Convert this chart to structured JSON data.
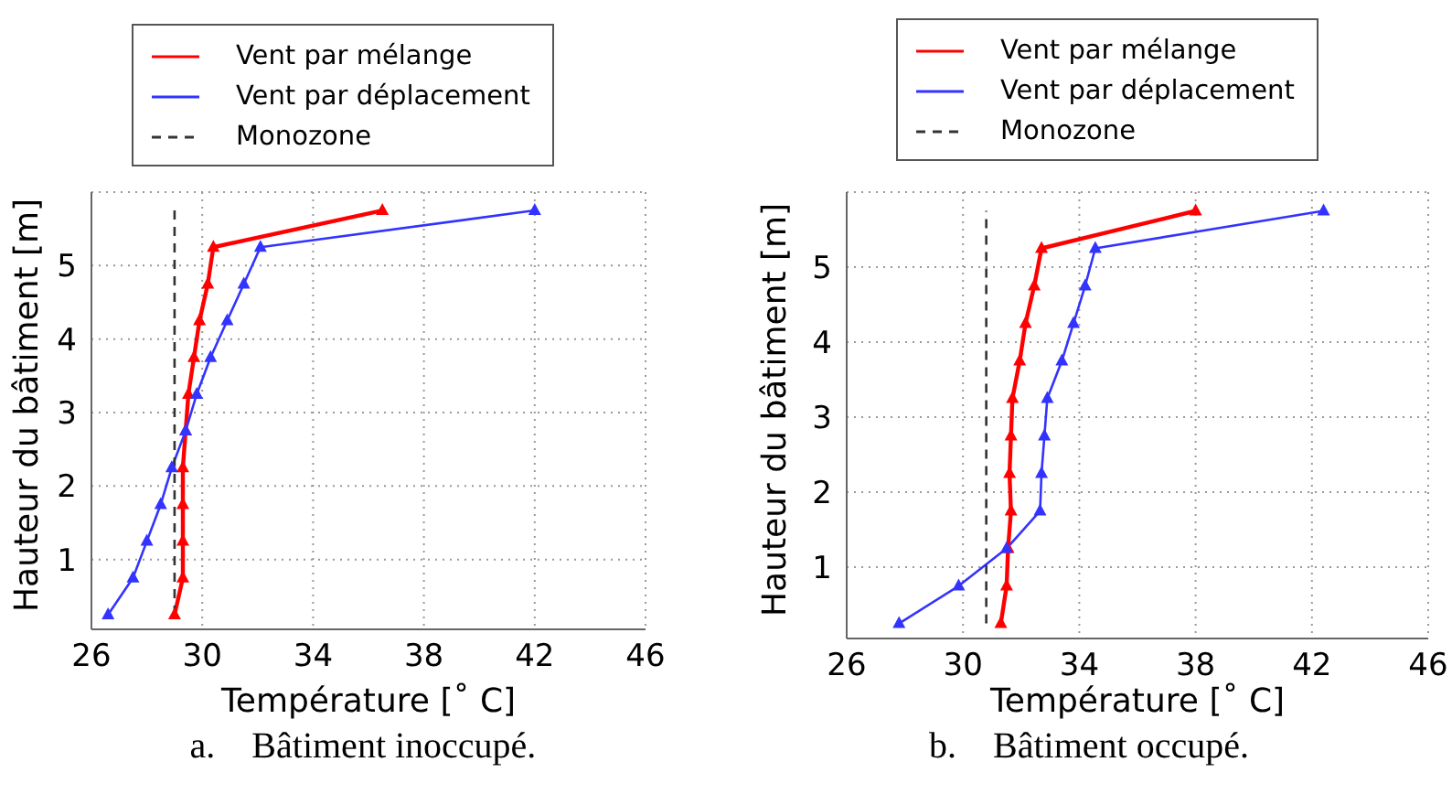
{
  "chart_data": [
    {
      "type": "line",
      "xlabel": "Température [˚ C]",
      "ylabel": "Hauteur du bâtiment [m]",
      "xlim": [
        26,
        46
      ],
      "xticks": [
        26,
        30,
        34,
        38,
        42,
        46
      ],
      "ylim": [
        0.05,
        6.0
      ],
      "yticks": [
        1,
        2,
        3,
        4,
        5
      ],
      "grid": true,
      "legend": "top",
      "annotations": [
        "a.    Bâtiment inoccupé."
      ],
      "series": [
        {
          "name": "Vent par mélange",
          "color": "#ff0000",
          "marker": "triangle",
          "line_style": "solid",
          "x": [
            29.0,
            29.3,
            29.3,
            29.3,
            29.3,
            29.4,
            29.5,
            29.7,
            29.9,
            30.2,
            30.4,
            36.5
          ],
          "values": [
            0.25,
            0.75,
            1.25,
            1.75,
            2.25,
            2.75,
            3.25,
            3.75,
            4.25,
            4.75,
            5.25,
            5.75
          ]
        },
        {
          "name": "Vent par déplacement",
          "color": "#3333ff",
          "marker": "triangle",
          "line_style": "solid",
          "x": [
            26.6,
            27.5,
            28.0,
            28.5,
            28.9,
            29.4,
            29.8,
            30.3,
            30.9,
            31.5,
            32.1,
            42.0
          ],
          "values": [
            0.25,
            0.75,
            1.25,
            1.75,
            2.25,
            2.75,
            3.25,
            3.75,
            4.25,
            4.75,
            5.25,
            5.75
          ]
        },
        {
          "name": "Monozone",
          "color": "#333333",
          "marker": "none",
          "line_style": "dashed",
          "x": [
            29.0,
            29.0
          ],
          "values": [
            0.25,
            5.75
          ]
        }
      ]
    },
    {
      "type": "line",
      "xlabel": "Température [˚ C]",
      "ylabel": "Hauteur du bâtiment [m]",
      "xlim": [
        26,
        46
      ],
      "xticks": [
        26,
        30,
        34,
        38,
        42,
        46
      ],
      "ylim": [
        0.05,
        6.0
      ],
      "yticks": [
        1,
        2,
        3,
        4,
        5
      ],
      "grid": true,
      "legend": "top",
      "annotations": [
        "b.    Bâtiment occupé."
      ],
      "series": [
        {
          "name": "Vent par mélange",
          "color": "#ff0000",
          "marker": "triangle",
          "line_style": "solid",
          "x": [
            31.3,
            31.5,
            31.55,
            31.65,
            31.6,
            31.65,
            31.7,
            31.95,
            32.15,
            32.45,
            32.7,
            38.0
          ],
          "values": [
            0.25,
            0.75,
            1.25,
            1.75,
            2.25,
            2.75,
            3.25,
            3.75,
            4.25,
            4.75,
            5.25,
            5.75
          ]
        },
        {
          "name": "Vent par déplacement",
          "color": "#3333ff",
          "marker": "triangle",
          "line_style": "solid",
          "x": [
            27.8,
            29.85,
            31.5,
            32.65,
            32.7,
            32.8,
            32.9,
            33.4,
            33.8,
            34.2,
            34.55,
            42.4
          ],
          "values": [
            0.25,
            0.75,
            1.25,
            1.75,
            2.25,
            2.75,
            3.25,
            3.75,
            4.25,
            4.75,
            5.25,
            5.75
          ]
        },
        {
          "name": "Monozone",
          "color": "#333333",
          "marker": "none",
          "line_style": "dashed",
          "x": [
            30.8,
            30.8
          ],
          "values": [
            0.25,
            5.75
          ]
        }
      ]
    }
  ]
}
